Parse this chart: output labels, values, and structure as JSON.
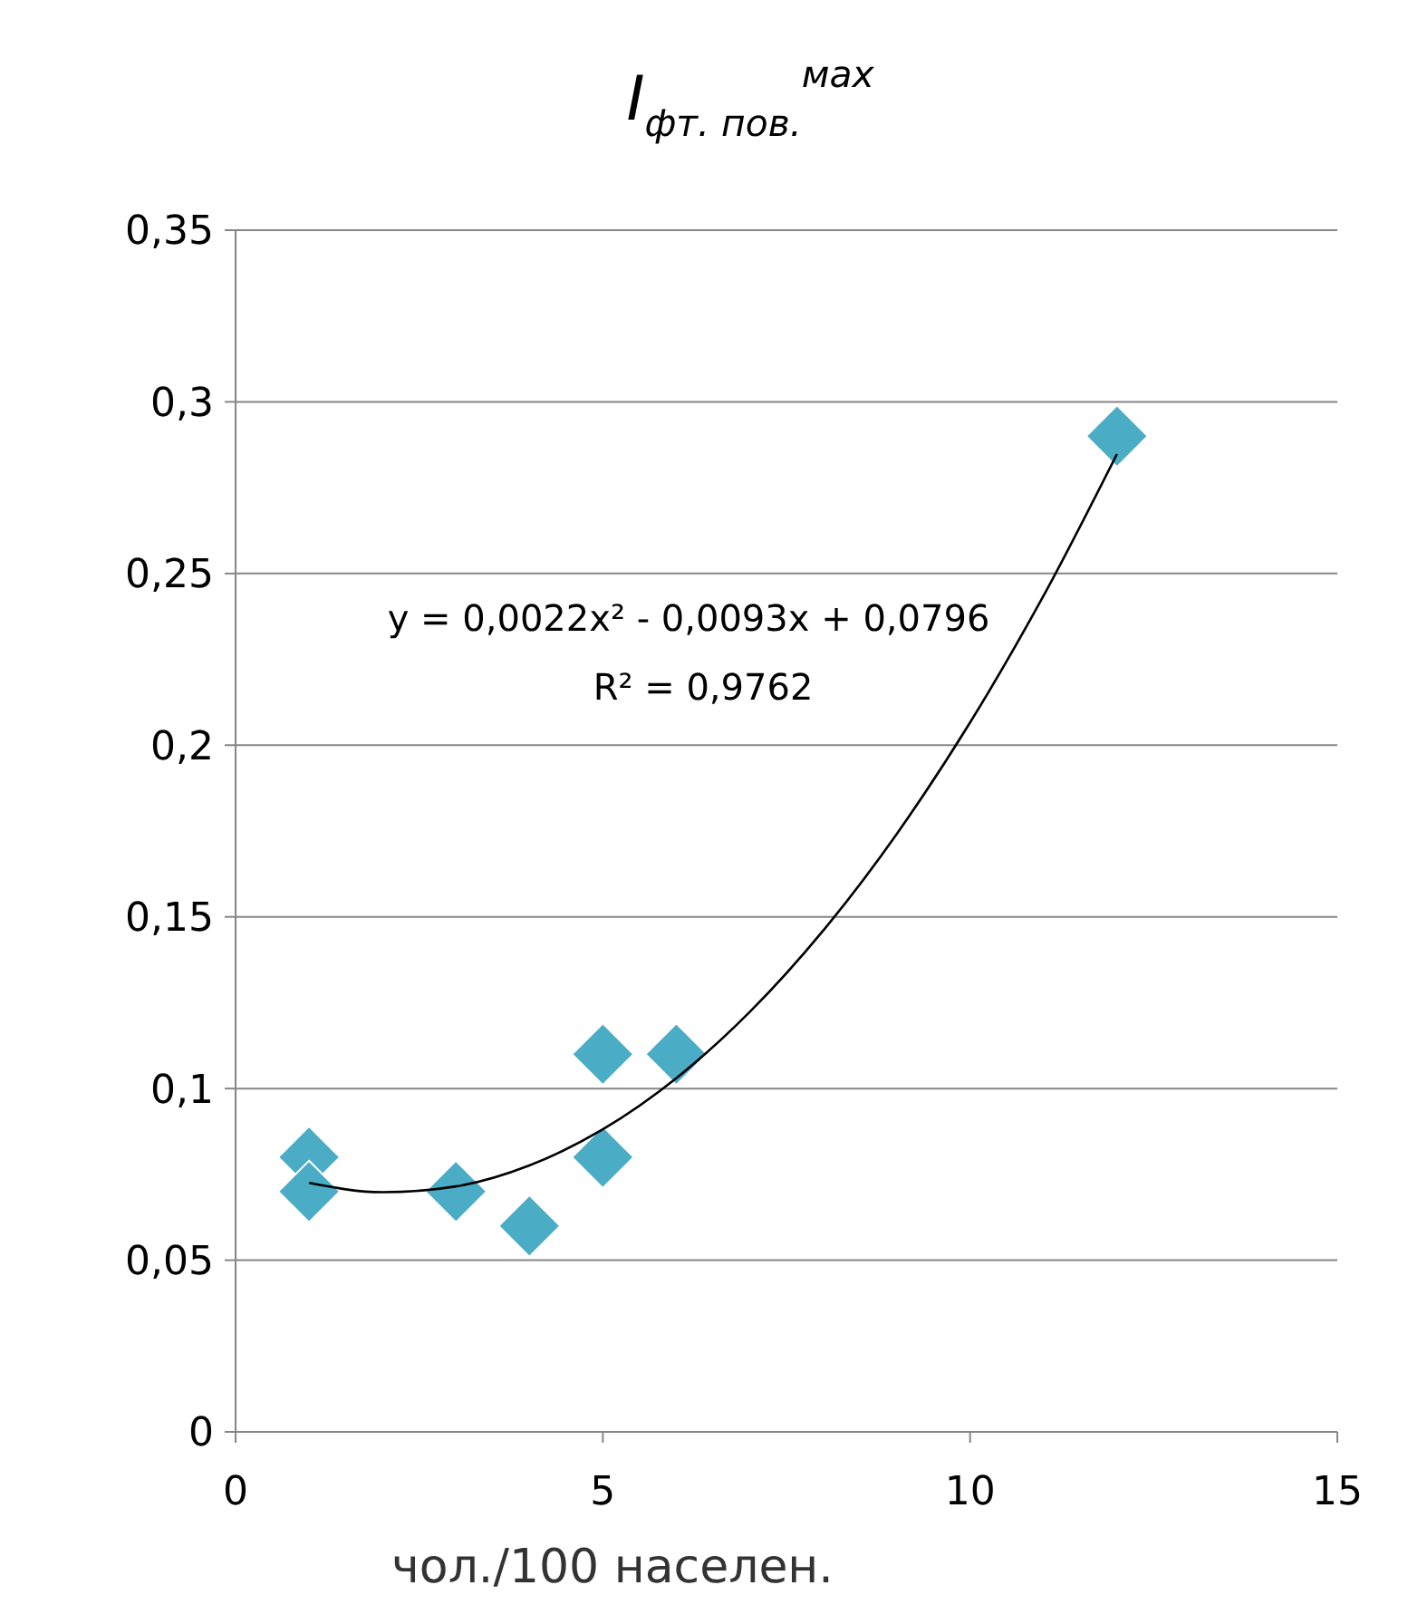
{
  "chart_data": {
    "type": "scatter",
    "title": "I$_{фт. пов.}$$^{мах}$",
    "xlabel": "чол./100 населен.",
    "xlim": [
      0,
      15
    ],
    "xticks": [
      0,
      5,
      10,
      15
    ],
    "ylim": [
      0,
      0.35
    ],
    "yticks": [
      {
        "value": 0,
        "label": "0"
      },
      {
        "value": 0.05,
        "label": "0,05"
      },
      {
        "value": 0.1,
        "label": "0,1"
      },
      {
        "value": 0.15,
        "label": "0,15"
      },
      {
        "value": 0.2,
        "label": "0,2"
      },
      {
        "value": 0.25,
        "label": "0,25"
      },
      {
        "value": 0.3,
        "label": "0,3"
      },
      {
        "value": 0.35,
        "label": "0,35"
      }
    ],
    "grid": "y",
    "marker": "diamond",
    "series": [
      {
        "color": "#4bacc6",
        "x": [
          1,
          1,
          3,
          4,
          5,
          5,
          6,
          12
        ],
        "values": [
          0.08,
          0.07,
          0.07,
          0.06,
          0.11,
          0.08,
          0.11,
          0.29
        ]
      },
      {
        "type": "line",
        "color": "#000000",
        "marker": "none",
        "line_style": "solid",
        "x": [
          1,
          2,
          3,
          4,
          5,
          6,
          7,
          8,
          9,
          10,
          11,
          12
        ],
        "values": [
          0.0725,
          0.0698,
          0.0715,
          0.0776,
          0.0881,
          0.103,
          0.1223,
          0.146,
          0.1741,
          0.2066,
          0.2435,
          0.2848
        ]
      }
    ],
    "annotations": [
      "y = 0,0022x² - 0,0093x + 0,0796",
      "R² = 0,9762"
    ]
  }
}
